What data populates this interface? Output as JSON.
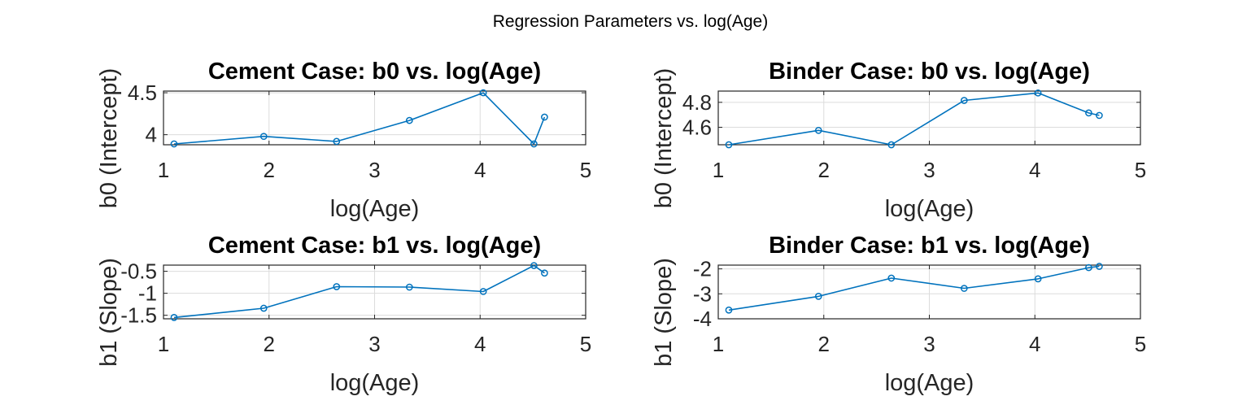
{
  "figure": {
    "suptitle": "Regression Parameters vs. log(Age)",
    "line_color": "#0072BD"
  },
  "chart_data": [
    {
      "type": "line",
      "title": "Cement Case: b0 vs. log(Age)",
      "xlabel": "log(Age)",
      "ylabel": "b0 (Intercept)",
      "xlim": [
        1,
        5
      ],
      "ylim": [
        3.88,
        4.52
      ],
      "xticks": [
        1,
        2,
        3,
        4,
        5
      ],
      "xtick_labels": [
        "1",
        "2",
        "3",
        "4",
        "5"
      ],
      "yticks": [
        4.0,
        4.5
      ],
      "ytick_labels": [
        "4",
        "4.5"
      ],
      "grid": true,
      "marker": "circle",
      "x": [
        1.1,
        1.95,
        2.64,
        3.33,
        4.03,
        4.51,
        4.61
      ],
      "y": [
        3.89,
        3.98,
        3.92,
        4.17,
        4.5,
        3.89,
        4.21
      ]
    },
    {
      "type": "line",
      "title": "Binder Case: b0 vs. log(Age)",
      "xlabel": "log(Age)",
      "ylabel": "b0 (Intercept)",
      "xlim": [
        1,
        5
      ],
      "ylim": [
        4.46,
        4.89
      ],
      "xticks": [
        1,
        2,
        3,
        4,
        5
      ],
      "xtick_labels": [
        "1",
        "2",
        "3",
        "4",
        "5"
      ],
      "yticks": [
        4.6,
        4.8
      ],
      "ytick_labels": [
        "4.6",
        "4.8"
      ],
      "grid": true,
      "marker": "circle",
      "x": [
        1.1,
        1.95,
        2.64,
        3.33,
        4.03,
        4.51,
        4.61
      ],
      "y": [
        4.46,
        4.575,
        4.46,
        4.815,
        4.875,
        4.715,
        4.695
      ]
    },
    {
      "type": "line",
      "title": "Cement Case: b1 vs. log(Age)",
      "xlabel": "log(Age)",
      "ylabel": "b1 (Slope)",
      "xlim": [
        1,
        5
      ],
      "ylim": [
        -1.58,
        -0.36
      ],
      "xticks": [
        1,
        2,
        3,
        4,
        5
      ],
      "xtick_labels": [
        "1",
        "2",
        "3",
        "4",
        "5"
      ],
      "yticks": [
        -1.5,
        -1.0,
        -0.5
      ],
      "ytick_labels": [
        "-1.5",
        "-1",
        "-0.5"
      ],
      "grid": true,
      "marker": "circle",
      "x": [
        1.1,
        1.95,
        2.64,
        3.33,
        4.03,
        4.51,
        4.61
      ],
      "y": [
        -1.55,
        -1.34,
        -0.85,
        -0.86,
        -0.96,
        -0.37,
        -0.54
      ]
    },
    {
      "type": "line",
      "title": "Binder Case: b1 vs. log(Age)",
      "xlabel": "log(Age)",
      "ylabel": "b1 (Slope)",
      "xlim": [
        1,
        5
      ],
      "ylim": [
        -4,
        -1.85
      ],
      "xticks": [
        1,
        2,
        3,
        4,
        5
      ],
      "xtick_labels": [
        "1",
        "2",
        "3",
        "4",
        "5"
      ],
      "yticks": [
        -4,
        -3,
        -2
      ],
      "ytick_labels": [
        "-4",
        "-3",
        "-2"
      ],
      "grid": true,
      "marker": "circle",
      "x": [
        1.1,
        1.95,
        2.64,
        3.33,
        4.03,
        4.51,
        4.61
      ],
      "y": [
        -3.65,
        -3.1,
        -2.37,
        -2.78,
        -2.4,
        -1.95,
        -1.9
      ]
    }
  ]
}
